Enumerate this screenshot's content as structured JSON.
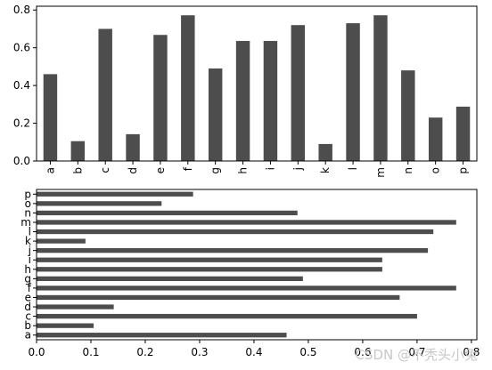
{
  "chart_data": [
    {
      "type": "bar",
      "orientation": "vertical",
      "categories": [
        "a",
        "b",
        "c",
        "d",
        "e",
        "f",
        "g",
        "h",
        "i",
        "j",
        "k",
        "l",
        "m",
        "n",
        "o",
        "p"
      ],
      "values": [
        0.46,
        0.105,
        0.7,
        0.142,
        0.668,
        0.772,
        0.49,
        0.636,
        0.636,
        0.72,
        0.09,
        0.73,
        0.772,
        0.48,
        0.23,
        0.288
      ],
      "ylim": [
        0,
        0.82
      ],
      "yticks": [
        "0.0",
        "0.2",
        "0.4",
        "0.6",
        "0.8"
      ],
      "color": "#4d4d4d",
      "grid": false
    },
    {
      "type": "bar",
      "orientation": "horizontal",
      "categories": [
        "a",
        "b",
        "c",
        "d",
        "e",
        "f",
        "g",
        "h",
        "i",
        "j",
        "k",
        "l",
        "m",
        "n",
        "o",
        "p"
      ],
      "values": [
        0.46,
        0.105,
        0.7,
        0.142,
        0.668,
        0.772,
        0.49,
        0.636,
        0.636,
        0.72,
        0.09,
        0.73,
        0.772,
        0.48,
        0.23,
        0.288
      ],
      "xlim": [
        0,
        0.81
      ],
      "xticks": [
        "0.0",
        "0.1",
        "0.2",
        "0.3",
        "0.4",
        "0.5",
        "0.6",
        "0.7",
        "0.8"
      ],
      "color": "#4d4d4d",
      "grid": false
    }
  ],
  "watermark": "CSDN @不秃头小兔"
}
